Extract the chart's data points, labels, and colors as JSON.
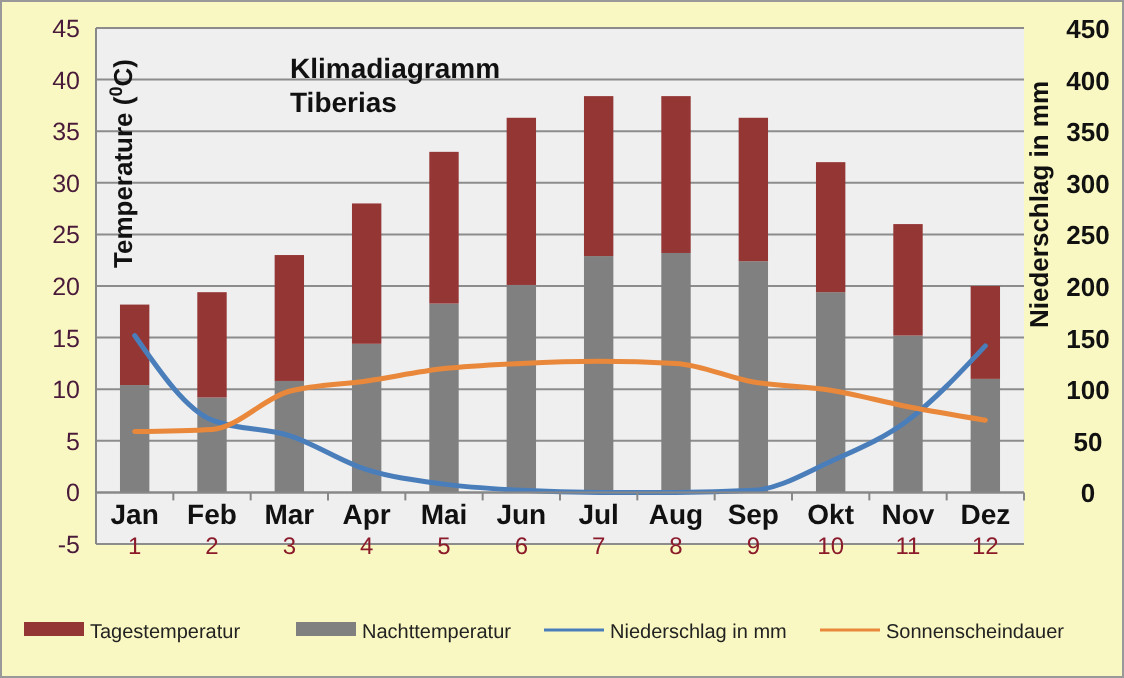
{
  "chart_data": {
    "type": "bar",
    "title": "Klimadiagramm",
    "subtitle": "Tiberias",
    "ylabel": "Temperature ($^{0}$C)",
    "y2label": "Niederschlag in mm",
    "categories": [
      "Jan\n1",
      "Feb\n2",
      "Mar\n3",
      "Apr\n4",
      "Mai\n5",
      "Jun\n6",
      "Jul\n7",
      "Aug\n8",
      "Sep\n9",
      "Okt\n10",
      "Nov\n11",
      "Dez\n12"
    ],
    "stacked": true,
    "series": [
      {
        "name": "Nachttemperatur",
        "color": "#808080",
        "values": [
          10.4,
          9.2,
          10.8,
          14.4,
          18.3,
          20.1,
          22.9,
          23.2,
          22.4,
          19.4,
          15.2,
          11.0
        ]
      },
      {
        "name": "Tagestemperatur",
        "color": "#943634",
        "values": [
          7.8,
          10.2,
          12.2,
          13.6,
          14.7,
          16.2,
          15.5,
          15.2,
          13.9,
          12.6,
          10.8,
          9.0
        ]
      },
      {
        "name": "Niederschlag in mm",
        "type": "line",
        "axis": "y2",
        "color": "#4a7ebb",
        "values": [
          152,
          70,
          55,
          22,
          8,
          2,
          0,
          0,
          2,
          30,
          70,
          142
        ]
      },
      {
        "name": "Sonnenscheindauer",
        "type": "line",
        "color": "#e9883a",
        "values": [
          5.9,
          6.1,
          9.8,
          10.8,
          12.0,
          12.5,
          12.7,
          12.5,
          10.7,
          9.9,
          8.3,
          7.0
        ]
      }
    ],
    "ylim": [
      -5,
      45
    ],
    "yticks": [
      -5,
      0,
      5,
      10,
      15,
      20,
      25,
      30,
      35,
      40,
      45
    ],
    "y2lim": [
      -50,
      450
    ],
    "y2ticks": [
      0,
      50,
      100,
      150,
      200,
      250,
      300,
      350,
      400,
      450
    ],
    "grid": "y",
    "legend": "bottom",
    "line_style": "solid",
    "marker": "none"
  }
}
